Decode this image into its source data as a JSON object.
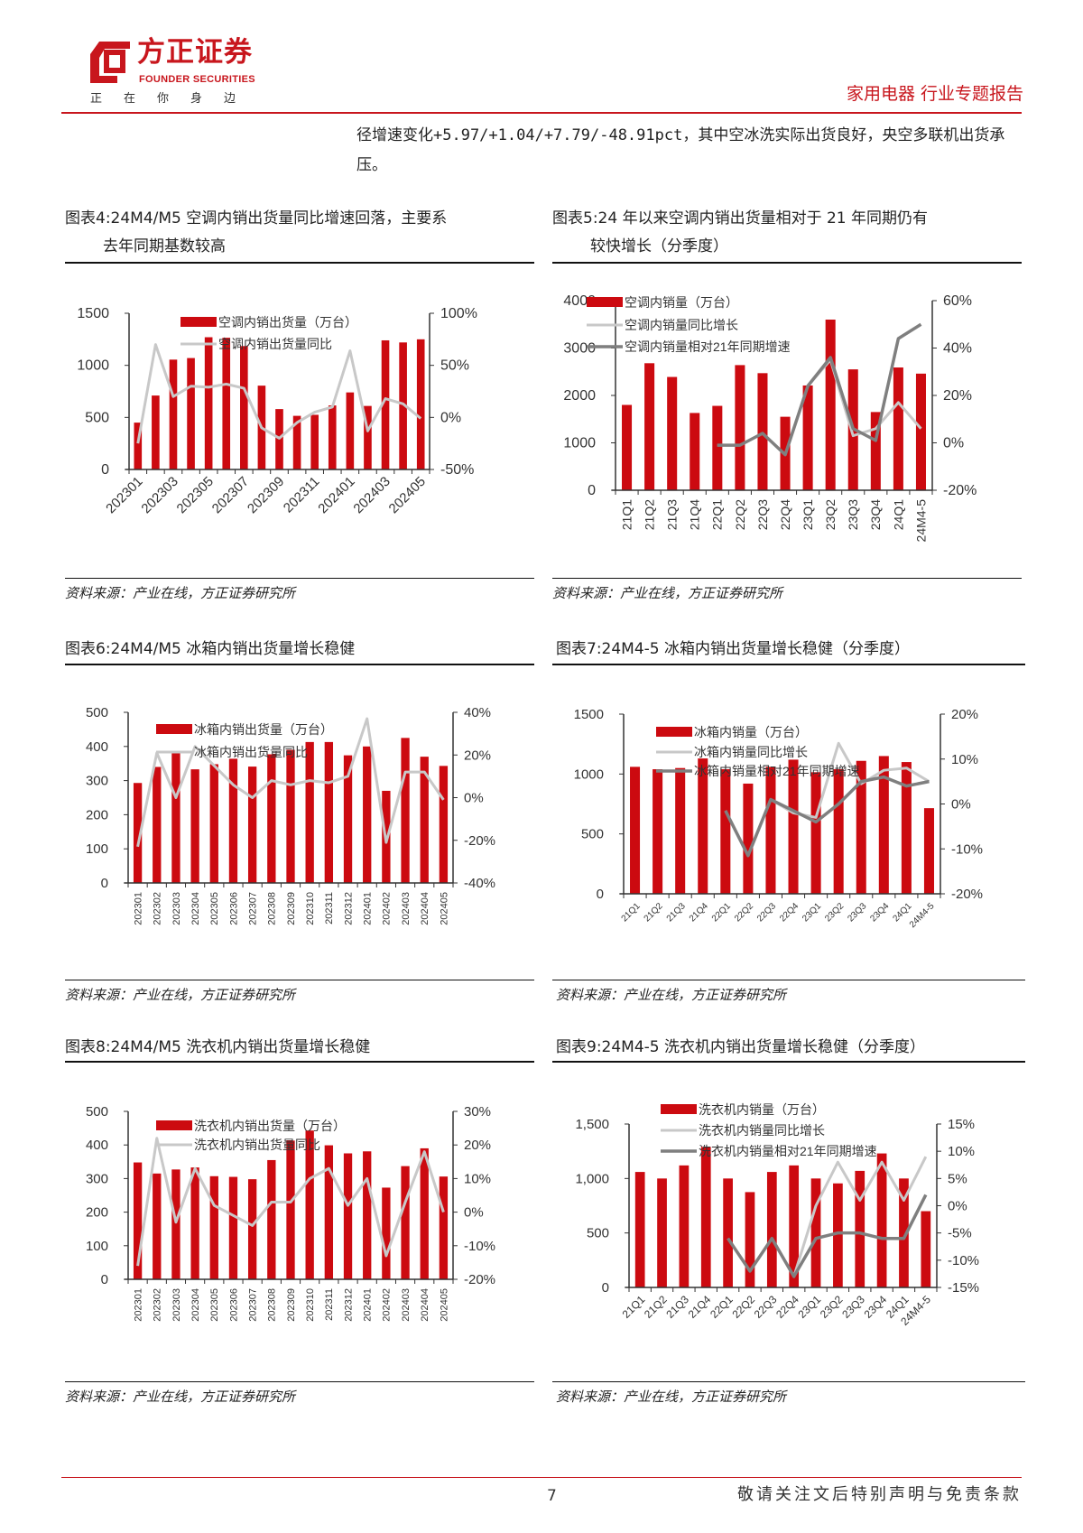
{
  "header": {
    "logo_cn": "方正证券",
    "logo_en": "FOUNDER SECURITIES",
    "slogan": "正在你身边",
    "report_type": "家用电器 行业专题报告",
    "brand_color": "#c8161d"
  },
  "body_text": "径增速变化+5.97/+1.04/+7.79/-48.91pct，其中空冰洗实际出货良好，央空多联机出货承压。",
  "figures": [
    {
      "title_line1": "图表4:24M4/M5 空调内销出货量同比增速回落，主要系",
      "title_line2": "去年同期基数较高",
      "source": "资料来源：产业在线，方正证券研究所"
    },
    {
      "title_line1": "图表5:24 年以来空调内销出货量相对于 21 年同期仍有",
      "title_line2": "较快增长（分季度）",
      "source": "资料来源：产业在线，方正证券研究所"
    },
    {
      "title_line1": "图表6:24M4/M5 冰箱内销出货量增长稳健",
      "title_line2": "",
      "source": "资料来源：产业在线，方正证券研究所"
    },
    {
      "title_line1": "图表7:24M4-5 冰箱内销出货量增长稳健（分季度）",
      "title_line2": "",
      "source": "资料来源：产业在线，方正证券研究所"
    },
    {
      "title_line1": "图表8:24M4/M5 洗衣机内销出货量增长稳健",
      "title_line2": "",
      "source": "资料来源：产业在线，方正证券研究所"
    },
    {
      "title_line1": "图表9:24M4-5 洗衣机内销出货量增长稳健（分季度）",
      "title_line2": "",
      "source": "资料来源：产业在线，方正证券研究所"
    }
  ],
  "colors": {
    "bar": "#cc0a10",
    "line_yoy": "#c8c8c8",
    "line_vs21": "#7f7f7f"
  },
  "chart_data": [
    {
      "type": "bar+line",
      "x_tick_labels": [
        "202301",
        "202303",
        "202305",
        "202307",
        "202309",
        "202311",
        "202401",
        "202403",
        "202405"
      ],
      "y_left": {
        "lim": [
          0,
          1500
        ],
        "ticks": [
          0,
          500,
          1000,
          1500
        ],
        "tick_labels": [
          "0",
          "500",
          "1000",
          "1500"
        ]
      },
      "y_right": {
        "lim": [
          -50,
          100
        ],
        "ticks": [
          -50,
          0,
          50,
          100
        ],
        "tick_labels": [
          "-50%",
          "0%",
          "50%",
          "100%"
        ]
      },
      "series": [
        {
          "name": "空调内销出货量（万台）",
          "type": "bar",
          "axis": "left",
          "values": [
            450,
            710,
            1055,
            1070,
            1270,
            1265,
            1185,
            805,
            580,
            515,
            525,
            615,
            740,
            610,
            1240,
            1220,
            1250
          ]
        },
        {
          "name": "空调内销出货量同比",
          "type": "line",
          "axis": "right",
          "color_key": "line_yoy",
          "values": [
            -25,
            70,
            20,
            30,
            29,
            32,
            28,
            -10,
            -20,
            -5,
            5,
            10,
            64,
            -13,
            18,
            13,
            -1
          ]
        }
      ],
      "grid": false,
      "legend": "top-center"
    },
    {
      "type": "bar+line",
      "x_tick_labels": [
        "21Q1",
        "21Q2",
        "21Q3",
        "21Q4",
        "22Q1",
        "22Q2",
        "22Q3",
        "22Q4",
        "23Q1",
        "23Q2",
        "23Q3",
        "23Q4",
        "24Q1",
        "24M4-5"
      ],
      "y_left": {
        "lim": [
          0,
          4000
        ],
        "ticks": [
          0,
          1000,
          2000,
          3000,
          4000
        ],
        "tick_labels": [
          "0",
          "1000",
          "2000",
          "3000",
          "4000"
        ]
      },
      "y_right": {
        "lim": [
          -20,
          60
        ],
        "ticks": [
          -20,
          0,
          20,
          40,
          60
        ],
        "tick_labels": [
          "-20%",
          "0%",
          "20%",
          "40%",
          "60%"
        ]
      },
      "series": [
        {
          "name": "空调内销量（万台）",
          "type": "bar",
          "axis": "left",
          "values": [
            1800,
            2680,
            2390,
            1630,
            1780,
            2640,
            2470,
            1550,
            2210,
            3600,
            2550,
            1650,
            2590,
            2460
          ]
        },
        {
          "name": "空调内销量同比增长",
          "type": "line",
          "axis": "right",
          "color_key": "line_yoy",
          "values": [
            null,
            null,
            null,
            null,
            -1,
            -1,
            4,
            -5,
            24,
            35,
            3,
            6,
            17,
            6
          ]
        },
        {
          "name": "空调内销量相对21年同期增速",
          "type": "line",
          "axis": "right",
          "color_key": "line_vs21",
          "values": [
            null,
            null,
            null,
            null,
            -1,
            -1,
            4,
            -5,
            24,
            36,
            6,
            1,
            44,
            50
          ]
        }
      ],
      "grid": false,
      "legend": "top-left"
    },
    {
      "type": "bar+line",
      "x_tick_labels": [
        "202301",
        "202302",
        "202303",
        "202304",
        "202305",
        "202306",
        "202307",
        "202308",
        "202309",
        "202310",
        "202311",
        "202312",
        "202401",
        "202402",
        "202403",
        "202404",
        "202405"
      ],
      "y_left": {
        "lim": [
          0,
          500
        ],
        "ticks": [
          0,
          100,
          200,
          300,
          400,
          500
        ],
        "tick_labels": [
          "0",
          "100",
          "200",
          "300",
          "400",
          "500"
        ]
      },
      "y_right": {
        "lim": [
          -40,
          40
        ],
        "ticks": [
          -40,
          -20,
          0,
          20,
          40
        ],
        "tick_labels": [
          "-40%",
          "-20%",
          "0%",
          "20%",
          "40%"
        ]
      },
      "series": [
        {
          "name": "冰箱内销出货量（万台）",
          "type": "bar",
          "axis": "left",
          "values": [
            293,
            340,
            380,
            333,
            348,
            364,
            341,
            377,
            390,
            413,
            413,
            374,
            400,
            270,
            425,
            370,
            343
          ]
        },
        {
          "name": "冰箱内销出货量同比",
          "type": "line",
          "axis": "right",
          "color_key": "line_yoy",
          "values": [
            -23,
            21,
            0,
            24,
            15,
            6,
            0,
            8,
            6,
            8,
            7,
            10,
            37,
            -21,
            12,
            12,
            -1
          ]
        }
      ],
      "grid": false,
      "legend": "top-center"
    },
    {
      "type": "bar+line",
      "x_tick_labels": [
        "21Q1",
        "21Q2",
        "21Q3",
        "21Q4",
        "22Q1",
        "22Q2",
        "22Q3",
        "22Q4",
        "23Q1",
        "23Q2",
        "23Q3",
        "23Q4",
        "24Q1",
        "24M4-5"
      ],
      "y_left": {
        "lim": [
          0,
          1500
        ],
        "ticks": [
          0,
          500,
          1000,
          1500
        ],
        "tick_labels": [
          "0",
          "500",
          "1000",
          "1500"
        ]
      },
      "y_right": {
        "lim": [
          -20,
          20
        ],
        "ticks": [
          -20,
          -10,
          0,
          10,
          20
        ],
        "tick_labels": [
          "-20%",
          "-10%",
          "0%",
          "10%",
          "20%"
        ]
      },
      "series": [
        {
          "name": "冰箱内销量（万台）",
          "type": "bar",
          "axis": "left",
          "values": [
            1060,
            1040,
            1050,
            1130,
            1040,
            920,
            1060,
            1120,
            1015,
            1040,
            1110,
            1150,
            1100,
            715
          ]
        },
        {
          "name": "冰箱内销量同比增长",
          "type": "line",
          "axis": "right",
          "color_key": "line_yoy",
          "values": [
            null,
            null,
            null,
            null,
            -1.5,
            -11.5,
            1,
            -2,
            -3,
            13.5,
            4.5,
            7.5,
            8,
            5
          ]
        },
        {
          "name": "冰箱内销量相对21年同期增速",
          "type": "line",
          "axis": "right",
          "color_key": "line_vs21",
          "values": [
            null,
            null,
            null,
            null,
            -1.5,
            -11.5,
            1,
            -1.5,
            -4,
            0,
            5,
            6,
            4,
            5
          ]
        }
      ],
      "grid": false,
      "legend": "top-center"
    },
    {
      "type": "bar+line",
      "x_tick_labels": [
        "202301",
        "202302",
        "202303",
        "202304",
        "202305",
        "202306",
        "202307",
        "202308",
        "202309",
        "202310",
        "202311",
        "202312",
        "202401",
        "202402",
        "202403",
        "202404",
        "202405"
      ],
      "y_left": {
        "lim": [
          0,
          500
        ],
        "ticks": [
          0,
          100,
          200,
          300,
          400,
          500
        ],
        "tick_labels": [
          "0",
          "100",
          "200",
          "300",
          "400",
          "500"
        ]
      },
      "y_right": {
        "lim": [
          -20,
          30
        ],
        "ticks": [
          -20,
          -10,
          0,
          10,
          20,
          30
        ],
        "tick_labels": [
          "-20%",
          "-10%",
          "0%",
          "10%",
          "20%",
          "30%"
        ]
      },
      "series": [
        {
          "name": "洗衣机内销出货量（万台）",
          "type": "bar",
          "axis": "left",
          "values": [
            348,
            315,
            327,
            333,
            307,
            305,
            298,
            355,
            413,
            443,
            399,
            375,
            381,
            273,
            337,
            390,
            306
          ]
        },
        {
          "name": "洗衣机内销出货量同比",
          "type": "line",
          "axis": "right",
          "color_key": "line_yoy",
          "values": [
            -16,
            22,
            -3,
            13,
            2,
            -1,
            -4,
            3,
            3,
            10,
            13,
            2,
            10,
            -13,
            3,
            18,
            0
          ]
        }
      ],
      "grid": false,
      "legend": "top-center"
    },
    {
      "type": "bar+line",
      "x_tick_labels": [
        "21Q1",
        "21Q2",
        "21Q3",
        "21Q4",
        "22Q1",
        "22Q2",
        "22Q3",
        "22Q4",
        "23Q1",
        "23Q2",
        "23Q3",
        "23Q4",
        "24Q1",
        "24M4-5"
      ],
      "y_left": {
        "lim": [
          0,
          1500
        ],
        "ticks": [
          0,
          500,
          1000,
          1500
        ],
        "tick_labels": [
          "0",
          "500",
          "1,000",
          "1,500"
        ]
      },
      "y_right": {
        "lim": [
          -15,
          15
        ],
        "ticks": [
          -15,
          -10,
          -5,
          0,
          5,
          10,
          15
        ],
        "tick_labels": [
          "-15%",
          "-10%",
          "-5%",
          "0%",
          "5%",
          "10%",
          "15%"
        ]
      },
      "series": [
        {
          "name": "洗衣机内销量（万台）",
          "type": "bar",
          "axis": "left",
          "values": [
            1060,
            1000,
            1120,
            1290,
            1000,
            875,
            1060,
            1120,
            1000,
            955,
            1070,
            1230,
            1000,
            700
          ]
        },
        {
          "name": "洗衣机内销量同比增长",
          "type": "line",
          "axis": "right",
          "color_key": "line_yoy",
          "values": [
            null,
            null,
            null,
            null,
            -6,
            -12,
            -6,
            -13,
            0,
            8,
            1,
            8,
            1,
            9
          ]
        },
        {
          "name": "洗衣机内销量相对21年同期增速",
          "type": "line",
          "axis": "right",
          "color_key": "line_vs21",
          "values": [
            null,
            null,
            null,
            null,
            -6,
            -12,
            -6,
            -13,
            -6,
            -5,
            -5,
            -6,
            -6,
            2
          ]
        }
      ],
      "grid": false,
      "legend": "top-center"
    }
  ],
  "footer": {
    "page_number": "7",
    "disclaimer": "敬请关注文后特别声明与免责条款"
  }
}
